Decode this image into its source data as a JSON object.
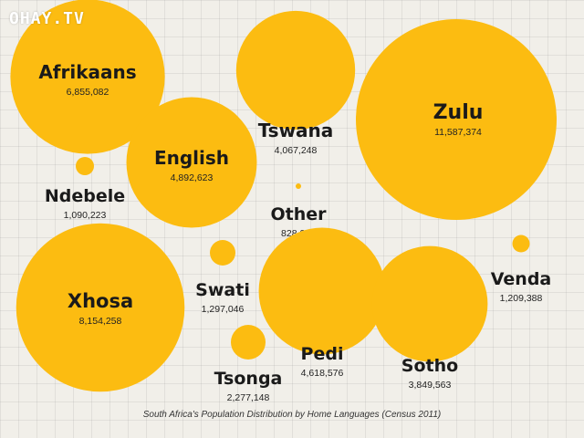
{
  "watermark": "OHAY.TV",
  "chart_data": {
    "type": "bubble",
    "title": "South Africa's Population Distribution by Home Languages (Census 2011)",
    "bubble_color": "#fcbc11",
    "series": [
      {
        "name": "Afrikaans",
        "value": 6855082,
        "label": "6,855,082"
      },
      {
        "name": "Tswana",
        "value": 4067248,
        "label": "4,067,248"
      },
      {
        "name": "Zulu",
        "value": 11587374,
        "label": "11,587,374"
      },
      {
        "name": "English",
        "value": 4892623,
        "label": "4,892,623"
      },
      {
        "name": "Ndebele",
        "value": 1090223,
        "label": "1,090,223"
      },
      {
        "name": "Other",
        "value": 828258,
        "label": "828,258"
      },
      {
        "name": "Xhosa",
        "value": 8154258,
        "label": "8,154,258"
      },
      {
        "name": "Swati",
        "value": 1297046,
        "label": "1,297,046"
      },
      {
        "name": "Venda",
        "value": 1209388,
        "label": "1,209,388"
      },
      {
        "name": "Pedi",
        "value": 4618576,
        "label": "4,618,576"
      },
      {
        "name": "Sotho",
        "value": 3849563,
        "label": "3,849,563"
      },
      {
        "name": "Tsonga",
        "value": 2277148,
        "label": "2,277,148"
      }
    ]
  }
}
